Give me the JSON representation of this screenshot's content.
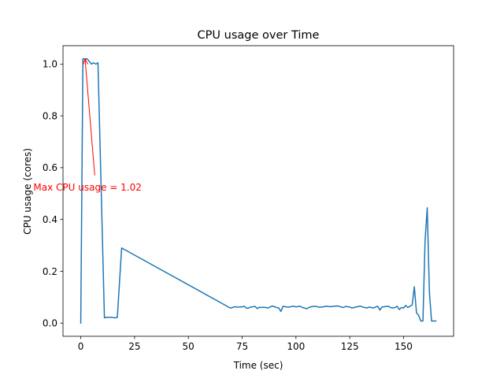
{
  "chart_data": {
    "type": "line",
    "title": "CPU usage over Time",
    "xlabel": "Time (sec)",
    "ylabel": "CPU usage (cores)",
    "xlim": [
      -8.25,
      173.25
    ],
    "ylim": [
      -0.051,
      1.071
    ],
    "xticks": [
      0,
      25,
      50,
      75,
      100,
      125,
      150
    ],
    "xtick_labels": [
      "0",
      "25",
      "50",
      "75",
      "100",
      "125",
      "150"
    ],
    "yticks": [
      0.0,
      0.2,
      0.4,
      0.6,
      0.8,
      1.0
    ],
    "ytick_labels": [
      "0.0",
      "0.2",
      "0.4",
      "0.6",
      "0.8",
      "1.0"
    ],
    "grid": false,
    "colors": {
      "line": "#1f77b4",
      "annotation": "#ff0000"
    },
    "series": [
      {
        "x": [
          0,
          1,
          2,
          3,
          4,
          5,
          6,
          7,
          8,
          11,
          12,
          14,
          16,
          17,
          19,
          68,
          69,
          70,
          71,
          72,
          73,
          74,
          75,
          76,
          77,
          78,
          79,
          80,
          81,
          82,
          83,
          84,
          85,
          86,
          87,
          88,
          89,
          90,
          91,
          92,
          93,
          94,
          95,
          96,
          97,
          98,
          99,
          100,
          101,
          102,
          103,
          104,
          105,
          106,
          107,
          108,
          109,
          110,
          111,
          112,
          113,
          114,
          115,
          116,
          117,
          118,
          119,
          120,
          121,
          122,
          123,
          124,
          125,
          126,
          127,
          128,
          129,
          130,
          131,
          132,
          133,
          134,
          135,
          136,
          137,
          138,
          139,
          140,
          141,
          142,
          143,
          144,
          145,
          146,
          147,
          148,
          149,
          150,
          151,
          152,
          153,
          154,
          155,
          156,
          157,
          158,
          159,
          160,
          161,
          162,
          163,
          164,
          165
        ],
        "y": [
          0.0,
          1.02,
          1.02,
          1.02,
          1.01,
          1.0,
          1.005,
          1.0,
          1.005,
          0.02,
          0.022,
          0.022,
          0.02,
          0.022,
          0.29,
          0.065,
          0.06,
          0.058,
          0.062,
          0.063,
          0.061,
          0.063,
          0.062,
          0.065,
          0.057,
          0.058,
          0.062,
          0.063,
          0.064,
          0.056,
          0.061,
          0.06,
          0.061,
          0.06,
          0.058,
          0.062,
          0.066,
          0.063,
          0.06,
          0.058,
          0.045,
          0.065,
          0.063,
          0.062,
          0.062,
          0.064,
          0.065,
          0.062,
          0.064,
          0.065,
          0.06,
          0.058,
          0.055,
          0.06,
          0.063,
          0.064,
          0.064,
          0.063,
          0.061,
          0.062,
          0.063,
          0.065,
          0.064,
          0.063,
          0.064,
          0.065,
          0.066,
          0.065,
          0.062,
          0.06,
          0.064,
          0.063,
          0.062,
          0.058,
          0.06,
          0.062,
          0.064,
          0.065,
          0.062,
          0.06,
          0.058,
          0.062,
          0.06,
          0.058,
          0.062,
          0.065,
          0.05,
          0.062,
          0.063,
          0.064,
          0.065,
          0.06,
          0.058,
          0.06,
          0.065,
          0.052,
          0.06,
          0.058,
          0.068,
          0.06,
          0.065,
          0.07,
          0.14,
          0.04,
          0.03,
          0.008,
          0.008,
          0.32,
          0.445,
          0.12,
          0.008,
          0.008,
          0.008
        ]
      }
    ],
    "annotation": {
      "text": "Max CPU usage = 1.02",
      "point": [
        2,
        1.02
      ],
      "text_at": [
        -22,
        0.525
      ],
      "arrow_tail": [
        6.5,
        0.57
      ]
    }
  }
}
